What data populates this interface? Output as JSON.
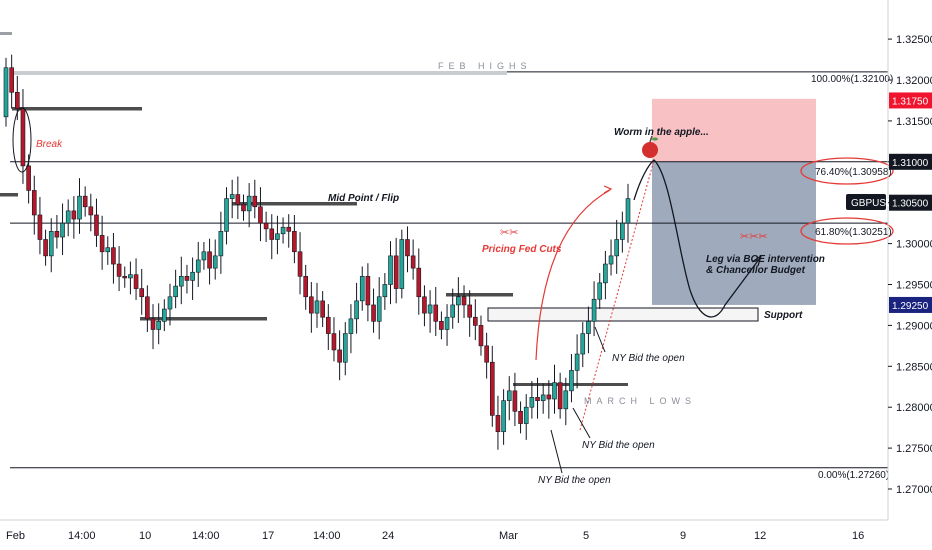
{
  "symbol": "GBPUSD",
  "chart_data": {
    "type": "candlestick",
    "y_axis": {
      "ticks": [
        "1.32500",
        "1.32000",
        "1.31500",
        "1.31000",
        "1.30500",
        "1.30000",
        "1.29500",
        "1.29000",
        "1.28500",
        "1.28000",
        "1.27500",
        "1.27000"
      ],
      "tick_values": [
        1.325,
        1.32,
        1.315,
        1.31,
        1.305,
        1.3,
        1.295,
        1.29,
        1.285,
        1.28,
        1.275,
        1.27
      ],
      "range": [
        1.2675,
        1.3315
      ]
    },
    "x_axis": {
      "ticks": [
        "Feb",
        "14:00",
        "10",
        "14:00",
        "17",
        "14:00",
        "24",
        "Mar",
        "5",
        "9",
        "12",
        "16"
      ]
    },
    "price_badges": [
      {
        "label": "1.31750",
        "value": 1.3175,
        "style": "red"
      },
      {
        "label": "1.31000",
        "value": 1.31,
        "style": "dark"
      },
      {
        "label": "1.30500",
        "value": 1.305,
        "style": "dark"
      },
      {
        "label": "1.29250",
        "value": 1.2925,
        "style": "navy"
      }
    ],
    "fibonacci": [
      {
        "label": "100.00%(1.32100)",
        "value": 1.321
      },
      {
        "label": "76.40%(1.30958)",
        "value": 1.30958
      },
      {
        "label": "61.80%(1.30251)",
        "value": 1.30251
      },
      {
        "label": "0.00%(1.27260)",
        "value": 1.2726
      }
    ],
    "horizontal_lines": [
      1.321,
      1.31,
      1.30251,
      1.2726
    ],
    "zones": [
      {
        "name": "target",
        "from": 1.31,
        "to": 1.3177,
        "color": "#f7b6b8"
      },
      {
        "name": "stop",
        "from": 1.2925,
        "to": 1.31,
        "color": "#8e9cb0"
      }
    ],
    "candles": [
      1.3215,
      1.3185,
      1.3165,
      1.3095,
      1.3065,
      1.3035,
      1.3005,
      1.2985,
      1.3015,
      1.3008,
      1.3025,
      1.304,
      1.303,
      1.3058,
      1.3045,
      1.3035,
      1.301,
      1.299,
      1.2995,
      1.2975,
      1.296,
      1.2958,
      1.2962,
      1.2945,
      1.2935,
      1.2908,
      1.2895,
      1.2905,
      1.292,
      1.2935,
      1.2948,
      1.296,
      1.2955,
      1.2965,
      1.298,
      1.299,
      1.297,
      1.2985,
      1.3015,
      1.3055,
      1.306,
      1.3048,
      1.304,
      1.3058,
      1.3045,
      1.3025,
      1.3018,
      1.3005,
      1.3012,
      1.302,
      1.3015,
      1.299,
      1.296,
      1.2935,
      1.2915,
      1.293,
      1.291,
      1.289,
      1.287,
      1.2855,
      1.289,
      1.2908,
      1.293,
      1.296,
      1.2925,
      1.2905,
      1.2935,
      1.295,
      1.2985,
      1.2945,
      1.3005,
      1.2985,
      1.297,
      1.2935,
      1.2915,
      1.2925,
      1.2905,
      1.2895,
      1.291,
      1.2925,
      1.2935,
      1.2925,
      1.291,
      1.29,
      1.2875,
      1.2855,
      1.279,
      1.277,
      1.2808,
      1.282,
      1.2795,
      1.278,
      1.28,
      1.2812,
      1.2808,
      1.2815,
      1.281,
      1.283,
      1.2798,
      1.282,
      1.2845,
      1.2865,
      1.289,
      1.2905,
      1.2932,
      1.2952,
      1.2975,
      1.2985,
      1.3005,
      1.3025,
      1.3055
    ]
  },
  "annotations": {
    "feb_highs": "FEB HIGHS",
    "break": "Break",
    "worm": "Worm in the apple...",
    "mid_point": "Mid Point / Flip",
    "pricing_fed": "Pricing Fed Cuts",
    "leg_line1": "Leg via BOE intervention",
    "leg_line2": "& Chancellor Budget",
    "support": "Support",
    "ny_bid_1": "NY Bid the open",
    "ny_bid_2": "NY Bid the open",
    "ny_bid_3": "NY Bid the open",
    "march_lows": "MARCH LOWS"
  },
  "colors": {
    "up": "#26a69a",
    "down": "#b5182b",
    "accent_red": "#e53935",
    "badge_red": "#f0142f",
    "badge_navy": "#1a237e",
    "badge_dark": "#131722"
  }
}
